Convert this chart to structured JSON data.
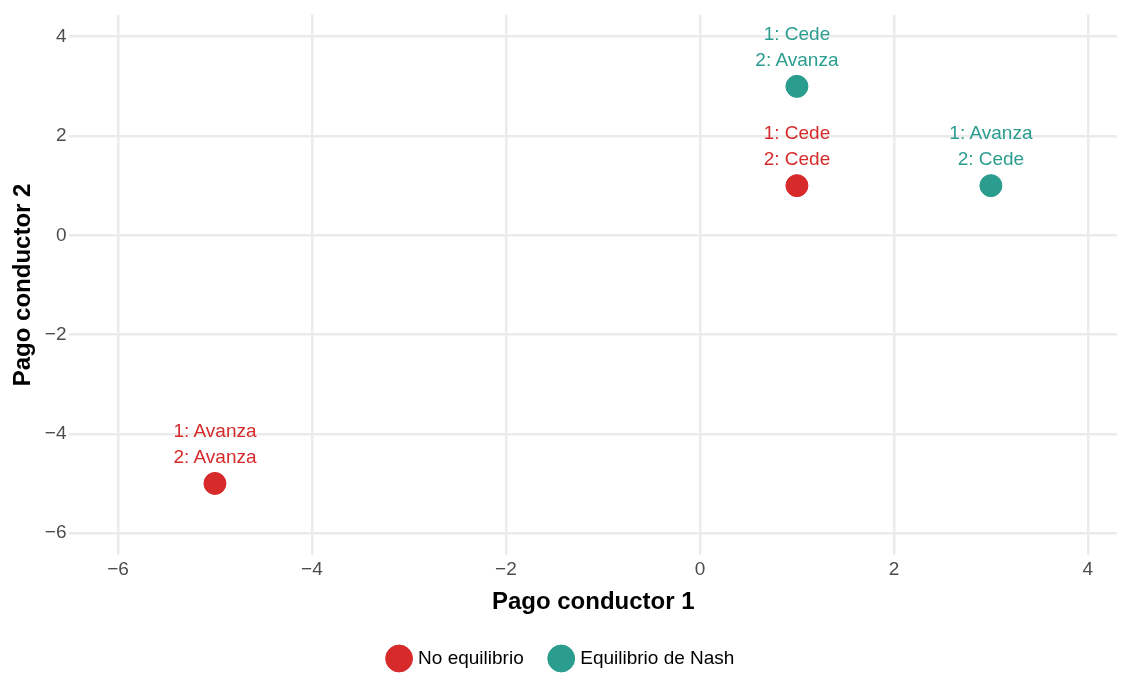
{
  "chart_data": {
    "type": "scatter",
    "xlabel": "Pago conductor 1",
    "ylabel": "Pago conductor 2",
    "series": [
      {
        "name": "No equilibrio",
        "color": "#d62a2b",
        "x": [
          1,
          -5
        ],
        "values": [
          1,
          -5
        ]
      },
      {
        "name": "Equilibrio de Nash",
        "color": "#2a9d8f",
        "x": [
          1,
          3
        ],
        "values": [
          3,
          1
        ]
      }
    ],
    "annotations": [
      {
        "text": "1: Cede\n2: Cede",
        "x": 1,
        "y": 1
      },
      {
        "text": "1: Avanza\n2: Avanza",
        "x": -5,
        "y": -5
      },
      {
        "text": "1: Cede\n2: Avanza",
        "x": 1,
        "y": 3
      },
      {
        "text": "1: Avanza\n2: Cede",
        "x": 3,
        "y": 1
      }
    ],
    "xlim": [
      -6.5,
      4.3
    ],
    "ylim": [
      -6.45,
      4.45
    ],
    "xticks": [
      {
        "value": -6,
        "label": "−6"
      },
      {
        "value": -4,
        "label": "−4"
      },
      {
        "value": -2,
        "label": "−2"
      },
      0,
      2,
      4
    ],
    "yticks": [
      {
        "value": -6,
        "label": "−6"
      },
      {
        "value": -4,
        "label": "−4"
      },
      {
        "value": -2,
        "label": "−2"
      },
      0,
      2,
      4
    ],
    "grid": true,
    "legend": "bottom",
    "marker": "circle"
  }
}
